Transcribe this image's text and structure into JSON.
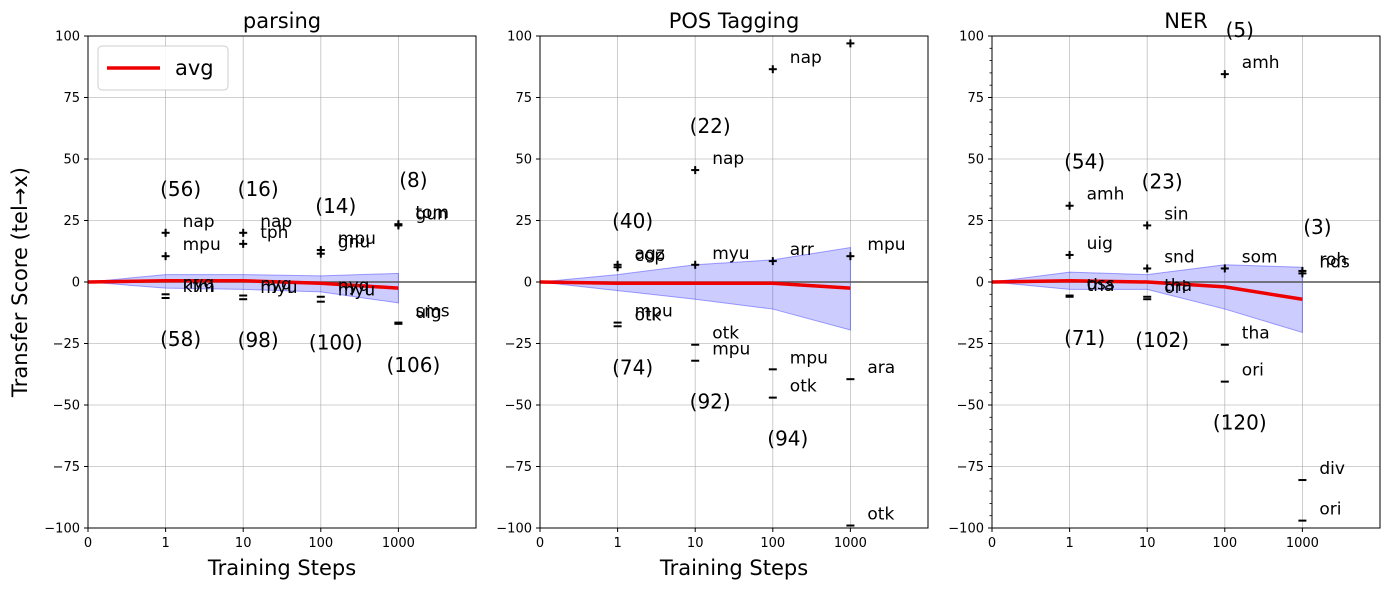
{
  "chart_data": [
    {
      "type": "line",
      "title": "parsing",
      "xlabel": "Training Steps",
      "ylabel": "Transfer Score (tel→x)",
      "x_ticks": [
        "0",
        "1",
        "10",
        "100",
        "1000"
      ],
      "y_ticks": [
        "100",
        "75",
        "50",
        "25",
        "0",
        "−25",
        "−50",
        "−75",
        "−100"
      ],
      "ylim": [
        -100,
        100
      ],
      "legend": {
        "label": "avg",
        "position": "top-left"
      },
      "series": [
        {
          "name": "avg",
          "x": [
            0,
            1,
            10,
            100,
            1000
          ],
          "values": [
            0,
            0.5,
            0.5,
            -0.5,
            -2.5
          ]
        },
        {
          "name": "band_upper",
          "x": [
            0,
            1,
            10,
            100,
            1000
          ],
          "values": [
            0,
            3,
            3,
            2.5,
            3.5
          ]
        },
        {
          "name": "band_lower",
          "x": [
            0,
            1,
            10,
            100,
            1000
          ],
          "values": [
            0,
            -2.5,
            -3,
            -4,
            -8.5
          ]
        }
      ],
      "extremes": [
        {
          "x": 1,
          "top": [
            {
              "value": 20,
              "label": "nap"
            },
            {
              "value": 10.5,
              "label": "mpu"
            }
          ],
          "bottom": [
            {
              "value": -5,
              "label": "nyq"
            },
            {
              "value": -6.5,
              "label": "kfm"
            }
          ],
          "top_count": "(56)",
          "bottom_count": "(58)"
        },
        {
          "x": 10,
          "top": [
            {
              "value": 20,
              "label": "nap"
            },
            {
              "value": 15.5,
              "label": "tph"
            }
          ],
          "bottom": [
            {
              "value": -5.5,
              "label": "nyq"
            },
            {
              "value": -7,
              "label": "myu"
            }
          ],
          "top_count": "(16)",
          "bottom_count": "(98)"
        },
        {
          "x": 100,
          "top": [
            {
              "value": 13,
              "label": "mpu"
            },
            {
              "value": 11.5,
              "label": "gnu"
            }
          ],
          "bottom": [
            {
              "value": -6,
              "label": "nyq"
            },
            {
              "value": -8,
              "label": "myu"
            }
          ],
          "top_count": "(14)",
          "bottom_count": "(100)"
        },
        {
          "x": 1000,
          "top": [
            {
              "value": 23.5,
              "label": "tom"
            },
            {
              "value": 23,
              "label": "gun"
            }
          ],
          "bottom": [
            {
              "value": -16.5,
              "label": "sms"
            },
            {
              "value": -17,
              "label": "uig"
            }
          ],
          "top_count": "(8)",
          "bottom_count": "(106)"
        }
      ]
    },
    {
      "type": "line",
      "title": "POS Tagging",
      "xlabel": "Training Steps",
      "ylabel": "",
      "x_ticks": [
        "0",
        "1",
        "10",
        "100",
        "1000"
      ],
      "y_ticks": [
        "100",
        "75",
        "50",
        "25",
        "0",
        "−25",
        "−50",
        "−75",
        "−100"
      ],
      "ylim": [
        -100,
        100
      ],
      "series": [
        {
          "name": "avg",
          "x": [
            0,
            1,
            10,
            100,
            1000
          ],
          "values": [
            0,
            -0.5,
            -0.5,
            -0.5,
            -2.5
          ]
        },
        {
          "name": "band_upper",
          "x": [
            0,
            1,
            10,
            100,
            1000
          ],
          "values": [
            0,
            3,
            7,
            9,
            14
          ]
        },
        {
          "name": "band_lower",
          "x": [
            0,
            1,
            10,
            100,
            1000
          ],
          "values": [
            0,
            -3.5,
            -7,
            -11,
            -19.5
          ]
        }
      ],
      "extremes": [
        {
          "x": 1,
          "top": [
            {
              "value": 7,
              "label": "agz"
            },
            {
              "value": 6,
              "label": "cop"
            }
          ],
          "bottom": [
            {
              "value": -16.5,
              "label": "mpu"
            },
            {
              "value": -18,
              "label": "otk"
            }
          ],
          "top_count": "(40)",
          "bottom_count": "(74)"
        },
        {
          "x": 10,
          "top": [
            {
              "value": 45.5,
              "label": "nap"
            },
            {
              "value": 7,
              "label": "myu"
            }
          ],
          "bottom": [
            {
              "value": -25.5,
              "label": "otk"
            },
            {
              "value": -32,
              "label": "mpu"
            }
          ],
          "top_count": "(22)",
          "bottom_count": "(92)"
        },
        {
          "x": 100,
          "top": [
            {
              "value": 86.5,
              "label": "nap"
            },
            {
              "value": 8.5,
              "label": "arr"
            }
          ],
          "bottom": [
            {
              "value": -35.5,
              "label": "mpu"
            },
            {
              "value": -47,
              "label": "otk"
            }
          ],
          "top_count": "",
          "bottom_count": "(94)"
        },
        {
          "x": 1000,
          "top": [
            {
              "value": 97,
              "label": ""
            },
            {
              "value": 10.5,
              "label": "mpu"
            }
          ],
          "bottom": [
            {
              "value": -39.5,
              "label": "ara"
            },
            {
              "value": -99,
              "label": "otk"
            }
          ],
          "top_count": "",
          "bottom_count": ""
        }
      ]
    },
    {
      "type": "line",
      "title": "NER",
      "xlabel": "",
      "ylabel": "",
      "x_ticks": [
        "0",
        "1",
        "10",
        "100",
        "1000"
      ],
      "y_ticks": [
        "100",
        "75",
        "50",
        "25",
        "0",
        "−25",
        "−50",
        "−75",
        "−100"
      ],
      "ylim": [
        -100,
        100
      ],
      "series": [
        {
          "name": "avg",
          "x": [
            0,
            1,
            10,
            100,
            1000
          ],
          "values": [
            0,
            0.5,
            0,
            -2,
            -7
          ]
        },
        {
          "name": "band_upper",
          "x": [
            0,
            1,
            10,
            100,
            1000
          ],
          "values": [
            0,
            4,
            3,
            7,
            6
          ]
        },
        {
          "name": "band_lower",
          "x": [
            0,
            1,
            10,
            100,
            1000
          ],
          "values": [
            0,
            -3,
            -3,
            -11,
            -20.5
          ]
        }
      ],
      "extremes": [
        {
          "x": 1,
          "top": [
            {
              "value": 31,
              "label": "amh"
            },
            {
              "value": 11,
              "label": "uig"
            }
          ],
          "bottom": [
            {
              "value": -5.5,
              "label": "oss"
            },
            {
              "value": -6,
              "label": "tha"
            }
          ],
          "top_count": "(54)",
          "bottom_count": "(71)"
        },
        {
          "x": 10,
          "top": [
            {
              "value": 23,
              "label": "sin"
            },
            {
              "value": 5.5,
              "label": "snd"
            }
          ],
          "bottom": [
            {
              "value": -6,
              "label": "tha"
            },
            {
              "value": -7,
              "label": "ori"
            }
          ],
          "top_count": "(23)",
          "bottom_count": "(102)"
        },
        {
          "x": 100,
          "top": [
            {
              "value": 84.5,
              "label": "amh"
            },
            {
              "value": 5.5,
              "label": "som"
            }
          ],
          "bottom": [
            {
              "value": -25.5,
              "label": "tha"
            },
            {
              "value": -40.5,
              "label": "ori"
            }
          ],
          "top_count": "(5)",
          "bottom_count": "(120)"
        },
        {
          "x": 1000,
          "top": [
            {
              "value": 4.5,
              "label": "roh"
            },
            {
              "value": 3.5,
              "label": "nds"
            }
          ],
          "bottom": [
            {
              "value": -80.5,
              "label": "div"
            },
            {
              "value": -97,
              "label": "ori"
            }
          ],
          "top_count": "(3)",
          "bottom_count": ""
        }
      ]
    }
  ]
}
